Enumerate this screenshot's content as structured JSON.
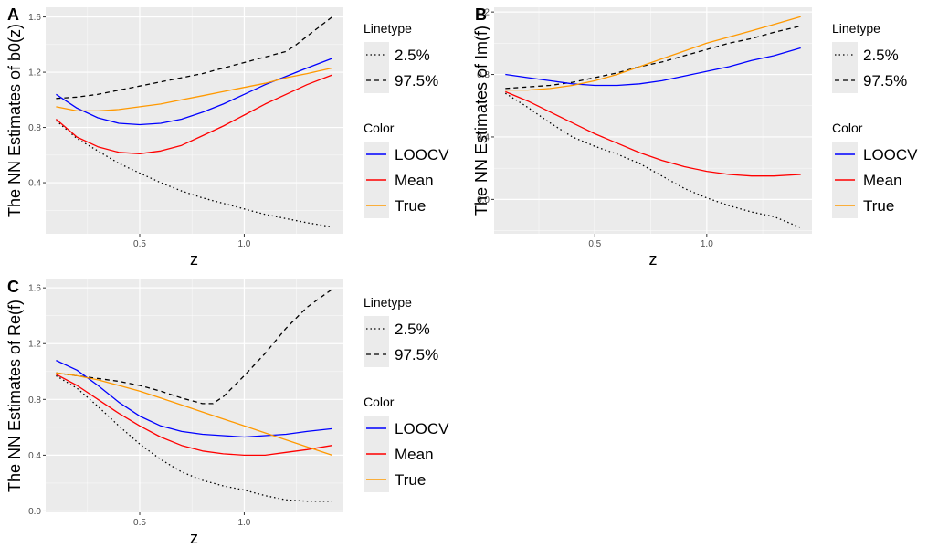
{
  "colors": {
    "panel_bg": "#ebebeb",
    "grid_major": "#ffffff",
    "LOOCV": "#0000ff",
    "Mean": "#ff0000",
    "True": "#ff9900",
    "band": "#000000"
  },
  "chart_data": [
    {
      "type": "line",
      "tag": "A",
      "xlabel": "z",
      "ylabel": "The NN Estimates of b0(z)",
      "xlim": [
        0.05,
        1.47
      ],
      "ylim": [
        0.03,
        1.67
      ],
      "xticks": [
        {
          "v": 0.5,
          "label": "0.5"
        },
        {
          "v": 1.0,
          "label": "1.0"
        }
      ],
      "yticks": [
        {
          "v": 0.4,
          "label": "0.4"
        },
        {
          "v": 0.8,
          "label": "0.8"
        },
        {
          "v": 1.2,
          "label": "1.2"
        },
        {
          "v": 1.6,
          "label": "1.6"
        }
      ],
      "series": [
        {
          "name": "2.5%",
          "kind": "band",
          "x": [
            0.1,
            0.2,
            0.3,
            0.4,
            0.5,
            0.6,
            0.7,
            0.8,
            0.9,
            1.0,
            1.1,
            1.2,
            1.3,
            1.42
          ],
          "y": [
            0.85,
            0.72,
            0.63,
            0.54,
            0.47,
            0.4,
            0.34,
            0.29,
            0.25,
            0.21,
            0.17,
            0.14,
            0.11,
            0.08
          ]
        },
        {
          "name": "97.5%",
          "kind": "band",
          "x": [
            0.1,
            0.2,
            0.3,
            0.4,
            0.5,
            0.6,
            0.7,
            0.8,
            0.9,
            1.0,
            1.1,
            1.2,
            1.25,
            1.3,
            1.42
          ],
          "y": [
            1.01,
            1.02,
            1.04,
            1.07,
            1.1,
            1.13,
            1.16,
            1.19,
            1.23,
            1.27,
            1.31,
            1.35,
            1.4,
            1.46,
            1.6
          ]
        },
        {
          "name": "LOOCV",
          "kind": "color",
          "x": [
            0.1,
            0.2,
            0.3,
            0.4,
            0.5,
            0.6,
            0.7,
            0.8,
            0.9,
            1.0,
            1.1,
            1.2,
            1.3,
            1.42
          ],
          "y": [
            1.04,
            0.94,
            0.87,
            0.83,
            0.82,
            0.83,
            0.86,
            0.91,
            0.97,
            1.04,
            1.11,
            1.17,
            1.23,
            1.3
          ]
        },
        {
          "name": "Mean",
          "kind": "color",
          "x": [
            0.1,
            0.2,
            0.3,
            0.4,
            0.5,
            0.6,
            0.7,
            0.8,
            0.9,
            1.0,
            1.1,
            1.2,
            1.3,
            1.42
          ],
          "y": [
            0.86,
            0.73,
            0.66,
            0.62,
            0.61,
            0.63,
            0.67,
            0.74,
            0.81,
            0.89,
            0.97,
            1.04,
            1.11,
            1.18
          ]
        },
        {
          "name": "True",
          "kind": "color",
          "x": [
            0.1,
            0.2,
            0.3,
            0.4,
            0.5,
            0.6,
            0.7,
            0.8,
            0.9,
            1.0,
            1.1,
            1.2,
            1.3,
            1.42
          ],
          "y": [
            0.95,
            0.92,
            0.92,
            0.93,
            0.95,
            0.97,
            1.0,
            1.03,
            1.06,
            1.09,
            1.12,
            1.16,
            1.19,
            1.23
          ]
        }
      ]
    },
    {
      "type": "line",
      "tag": "B",
      "xlabel": "z",
      "ylabel": "The NN Estimates of Im(f)",
      "xlim": [
        0.05,
        1.47
      ],
      "ylim": [
        -0.22,
        1.23
      ],
      "xticks": [
        {
          "v": 0.5,
          "label": "0.5"
        },
        {
          "v": 1.0,
          "label": "1.0"
        }
      ],
      "yticks": [
        {
          "v": 0.0,
          "label": "0.0"
        },
        {
          "v": 0.4,
          "label": "0.4"
        },
        {
          "v": 0.8,
          "label": "0.8"
        },
        {
          "v": 1.2,
          "label": "1.2"
        }
      ],
      "series": [
        {
          "name": "2.5%",
          "kind": "band",
          "x": [
            0.1,
            0.2,
            0.3,
            0.4,
            0.5,
            0.6,
            0.7,
            0.8,
            0.9,
            1.0,
            1.1,
            1.2,
            1.3,
            1.42
          ],
          "y": [
            0.68,
            0.59,
            0.49,
            0.4,
            0.34,
            0.29,
            0.23,
            0.15,
            0.07,
            0.01,
            -0.04,
            -0.08,
            -0.11,
            -0.18
          ]
        },
        {
          "name": "97.5%",
          "kind": "band",
          "x": [
            0.1,
            0.2,
            0.3,
            0.4,
            0.5,
            0.6,
            0.7,
            0.8,
            0.9,
            1.0,
            1.1,
            1.2,
            1.3,
            1.42
          ],
          "y": [
            0.71,
            0.72,
            0.73,
            0.75,
            0.78,
            0.81,
            0.85,
            0.88,
            0.92,
            0.96,
            1.0,
            1.03,
            1.07,
            1.11
          ]
        },
        {
          "name": "LOOCV",
          "kind": "color",
          "x": [
            0.1,
            0.2,
            0.3,
            0.4,
            0.5,
            0.6,
            0.7,
            0.8,
            0.9,
            1.0,
            1.1,
            1.2,
            1.3,
            1.42
          ],
          "y": [
            0.8,
            0.78,
            0.76,
            0.74,
            0.73,
            0.73,
            0.74,
            0.76,
            0.79,
            0.82,
            0.85,
            0.89,
            0.92,
            0.97
          ]
        },
        {
          "name": "Mean",
          "kind": "color",
          "x": [
            0.1,
            0.2,
            0.3,
            0.4,
            0.5,
            0.6,
            0.7,
            0.8,
            0.9,
            1.0,
            1.1,
            1.2,
            1.3,
            1.42
          ],
          "y": [
            0.69,
            0.63,
            0.56,
            0.49,
            0.42,
            0.36,
            0.3,
            0.25,
            0.21,
            0.18,
            0.16,
            0.15,
            0.15,
            0.16
          ]
        },
        {
          "name": "True",
          "kind": "color",
          "x": [
            0.1,
            0.2,
            0.3,
            0.4,
            0.5,
            0.6,
            0.7,
            0.8,
            0.9,
            1.0,
            1.1,
            1.2,
            1.3,
            1.42
          ],
          "y": [
            0.7,
            0.7,
            0.71,
            0.73,
            0.76,
            0.8,
            0.85,
            0.9,
            0.95,
            1.0,
            1.04,
            1.08,
            1.12,
            1.17
          ]
        }
      ]
    },
    {
      "type": "line",
      "tag": "C",
      "xlabel": "z",
      "ylabel": "The NN Estimates of Re(f)",
      "xlim": [
        0.05,
        1.47
      ],
      "ylim": [
        -0.01,
        1.66
      ],
      "xticks": [
        {
          "v": 0.5,
          "label": "0.5"
        },
        {
          "v": 1.0,
          "label": "1.0"
        }
      ],
      "yticks": [
        {
          "v": 0.0,
          "label": "0.0"
        },
        {
          "v": 0.4,
          "label": "0.4"
        },
        {
          "v": 0.8,
          "label": "0.8"
        },
        {
          "v": 1.2,
          "label": "1.2"
        },
        {
          "v": 1.6,
          "label": "1.6"
        }
      ],
      "series": [
        {
          "name": "2.5%",
          "kind": "band",
          "x": [
            0.1,
            0.2,
            0.3,
            0.4,
            0.5,
            0.6,
            0.7,
            0.8,
            0.9,
            1.0,
            1.1,
            1.2,
            1.3,
            1.42
          ],
          "y": [
            0.97,
            0.88,
            0.75,
            0.61,
            0.48,
            0.37,
            0.28,
            0.22,
            0.18,
            0.15,
            0.11,
            0.08,
            0.07,
            0.07
          ]
        },
        {
          "name": "97.5%",
          "kind": "band",
          "x": [
            0.1,
            0.2,
            0.3,
            0.4,
            0.5,
            0.6,
            0.7,
            0.75,
            0.8,
            0.85,
            0.9,
            1.0,
            1.1,
            1.2,
            1.3,
            1.42
          ],
          "y": [
            0.99,
            0.97,
            0.95,
            0.93,
            0.9,
            0.86,
            0.81,
            0.79,
            0.77,
            0.77,
            0.82,
            0.97,
            1.13,
            1.31,
            1.46,
            1.59
          ]
        },
        {
          "name": "LOOCV",
          "kind": "color",
          "x": [
            0.1,
            0.2,
            0.3,
            0.4,
            0.5,
            0.6,
            0.7,
            0.8,
            0.9,
            1.0,
            1.1,
            1.2,
            1.3,
            1.42
          ],
          "y": [
            1.08,
            1.01,
            0.9,
            0.78,
            0.68,
            0.61,
            0.57,
            0.55,
            0.54,
            0.53,
            0.54,
            0.55,
            0.57,
            0.59
          ]
        },
        {
          "name": "Mean",
          "kind": "color",
          "x": [
            0.1,
            0.2,
            0.3,
            0.4,
            0.5,
            0.6,
            0.7,
            0.8,
            0.9,
            1.0,
            1.1,
            1.2,
            1.3,
            1.42
          ],
          "y": [
            0.98,
            0.9,
            0.8,
            0.7,
            0.61,
            0.53,
            0.47,
            0.43,
            0.41,
            0.4,
            0.4,
            0.42,
            0.44,
            0.47
          ]
        },
        {
          "name": "True",
          "kind": "color",
          "x": [
            0.1,
            0.2,
            0.3,
            0.4,
            0.5,
            0.6,
            0.7,
            0.8,
            0.9,
            1.0,
            1.1,
            1.2,
            1.3,
            1.42
          ],
          "y": [
            0.99,
            0.97,
            0.94,
            0.9,
            0.86,
            0.81,
            0.76,
            0.71,
            0.66,
            0.61,
            0.56,
            0.51,
            0.46,
            0.4
          ]
        }
      ]
    }
  ],
  "legends": [
    {
      "linetype_title": "Linetype",
      "linetype_items": [
        {
          "label": "2.5%",
          "style": "dotted"
        },
        {
          "label": "97.5%",
          "style": "dashed"
        }
      ],
      "color_title": "Color",
      "color_items": [
        {
          "label": "LOOCV",
          "color": "#0000ff"
        },
        {
          "label": "Mean",
          "color": "#ff0000"
        },
        {
          "label": "True",
          "color": "#ff9900"
        }
      ]
    },
    {
      "linetype_title": "Linetype",
      "linetype_items": [
        {
          "label": "2.5%",
          "style": "dotted"
        },
        {
          "label": "97.5%",
          "style": "dashed"
        }
      ],
      "color_title": "Color",
      "color_items": [
        {
          "label": "LOOCV",
          "color": "#0000ff"
        },
        {
          "label": "Mean",
          "color": "#ff0000"
        },
        {
          "label": "True",
          "color": "#ff9900"
        }
      ]
    },
    {
      "linetype_title": "Linetype",
      "linetype_items": [
        {
          "label": "2.5%",
          "style": "dotted"
        },
        {
          "label": "97.5%",
          "style": "dashed"
        }
      ],
      "color_title": "Color",
      "color_items": [
        {
          "label": "LOOCV",
          "color": "#0000ff"
        },
        {
          "label": "Mean",
          "color": "#ff0000"
        },
        {
          "label": "True",
          "color": "#ff9900"
        }
      ]
    }
  ]
}
